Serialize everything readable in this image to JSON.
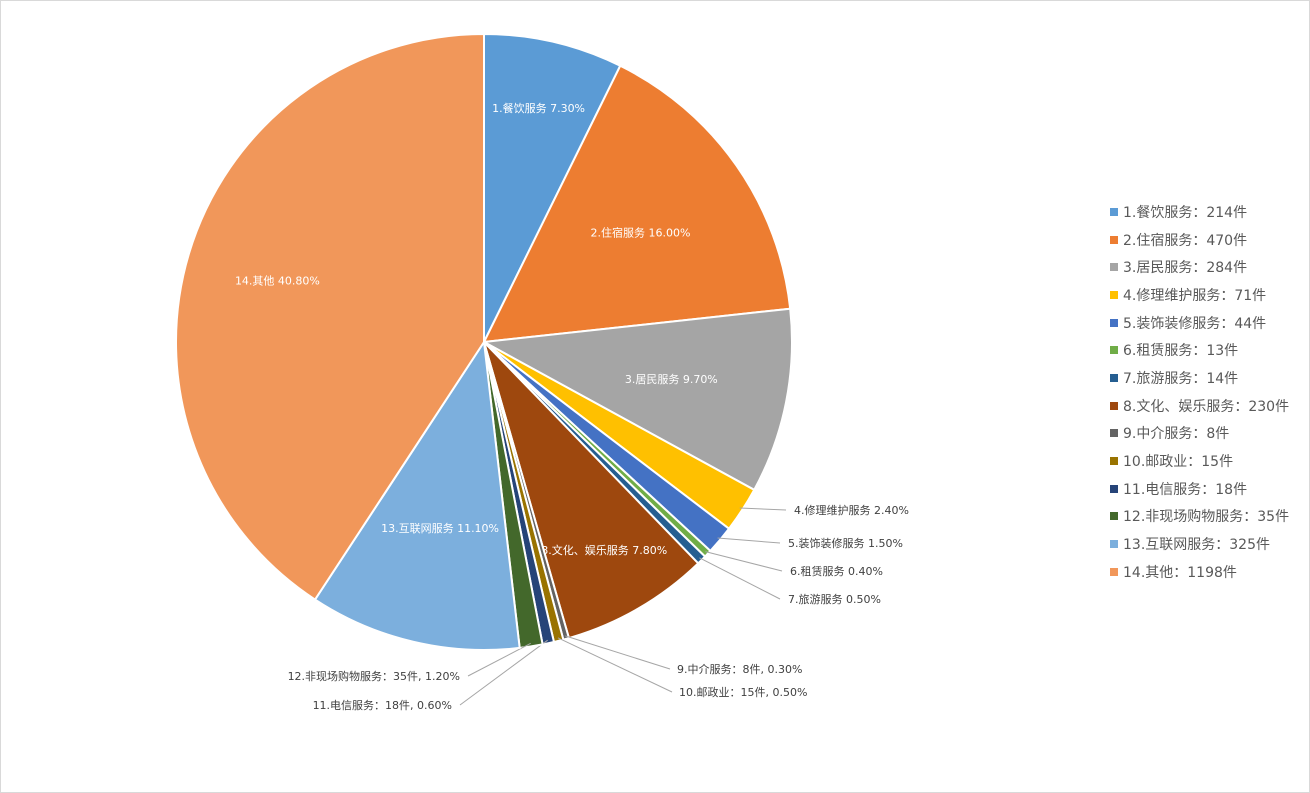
{
  "chart_data": {
    "type": "pie",
    "title": "",
    "slices": [
      {
        "legend": "1.餐饮服务：214件",
        "label": "1.餐饮服务  7.30%",
        "value": 214,
        "percent": 7.3,
        "color": "#5B9BD5",
        "label_inside": true
      },
      {
        "legend": "2.住宿服务：470件",
        "label": "2.住宿服务  16.00%",
        "value": 470,
        "percent": 16.0,
        "color": "#ED7D31",
        "label_inside": true
      },
      {
        "legend": "3.居民服务：284件",
        "label": "3.居民服务  9.70%",
        "value": 284,
        "percent": 9.7,
        "color": "#A5A5A5",
        "label_inside": true
      },
      {
        "legend": "4.修理维护服务：71件",
        "label": "4.修理维护服务  2.40%",
        "value": 71,
        "percent": 2.4,
        "color": "#FFC000",
        "label_inside": false
      },
      {
        "legend": "5.装饰装修服务：44件",
        "label": "5.装饰装修服务  1.50%",
        "value": 44,
        "percent": 1.5,
        "color": "#4472C4",
        "label_inside": false
      },
      {
        "legend": "6.租赁服务：13件",
        "label": "6.租赁服务  0.40%",
        "value": 13,
        "percent": 0.4,
        "color": "#70AD47",
        "label_inside": false
      },
      {
        "legend": "7.旅游服务：14件",
        "label": "7.旅游服务  0.50%",
        "value": 14,
        "percent": 0.5,
        "color": "#255E91",
        "label_inside": false
      },
      {
        "legend": "8.文化、娱乐服务：230件",
        "label": "8.文化、娱乐服务  7.80%",
        "value": 230,
        "percent": 7.8,
        "color": "#9E480E",
        "label_inside": true
      },
      {
        "legend": "9.中介服务：8件",
        "label": "9.中介服务：8件, 0.30%",
        "value": 8,
        "percent": 0.3,
        "color": "#636363",
        "label_inside": false
      },
      {
        "legend": "10.邮政业：15件",
        "label": "10.邮政业：15件, 0.50%",
        "value": 15,
        "percent": 0.5,
        "color": "#997300",
        "label_inside": false
      },
      {
        "legend": "11.电信服务：18件",
        "label": "11.电信服务：18件, 0.60%",
        "value": 18,
        "percent": 0.6,
        "color": "#264478",
        "label_inside": false
      },
      {
        "legend": "12.非现场购物服务：35件",
        "label": "12.非现场购物服务：35件, 1.20%",
        "value": 35,
        "percent": 1.2,
        "color": "#43682B",
        "label_inside": false
      },
      {
        "legend": "13.互联网服务：325件",
        "label": "13.互联网服务  11.10%",
        "value": 325,
        "percent": 11.1,
        "color": "#7CAFDD",
        "label_inside": true
      },
      {
        "legend": "14.其他：1198件",
        "label": "14.其他  40.80%",
        "value": 1198,
        "percent": 40.8,
        "color": "#F1975A",
        "label_inside": true
      }
    ],
    "legend_position": "right"
  }
}
